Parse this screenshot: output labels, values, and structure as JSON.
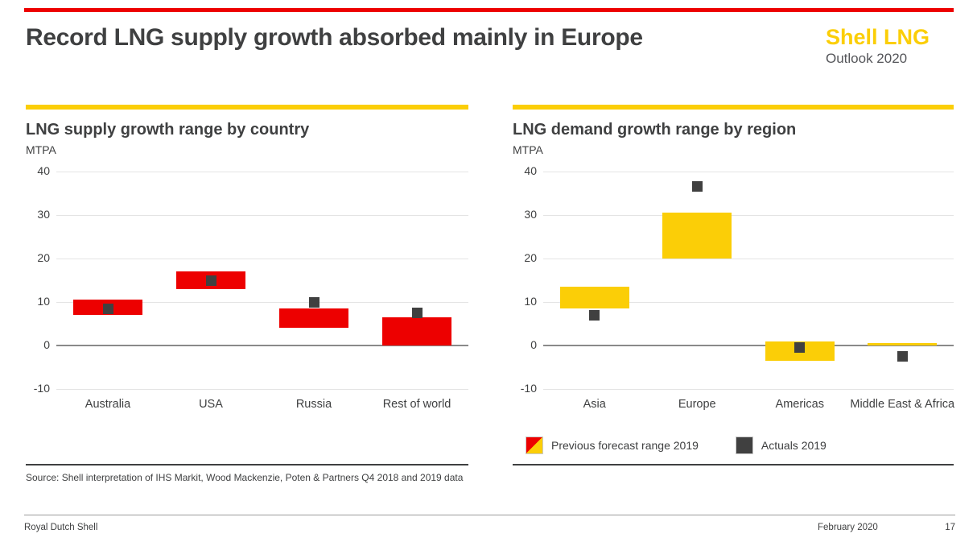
{
  "page": {
    "title": "Record LNG supply growth absorbed mainly in Europe",
    "brand": {
      "name": "Shell LNG",
      "subtitle": "Outlook 2020"
    },
    "source": "Source: Shell interpretation of IHS Markit, Wood Mackenzie, Poten & Partners Q4 2018 and 2019 data",
    "footer": {
      "left": "Royal Dutch Shell",
      "date": "February 2020",
      "page_number": "17"
    }
  },
  "legend": {
    "range_label": "Previous forecast range 2019",
    "actuals_label": "Actuals 2019"
  },
  "colors": {
    "shell_red": "#ED0000",
    "shell_yellow": "#FBCE07",
    "actuals_gray": "#404040",
    "grid_line": "#E4E4E4",
    "zero_line": "#8A8A8A",
    "text_dark": "#3F4041",
    "text_gray": "#55565A",
    "footer_line": "#9B9B9B"
  },
  "chart_data": [
    {
      "type": "bar",
      "title": "LNG supply growth range by country",
      "ylabel": "MTPA",
      "categories": [
        "Australia",
        "USA",
        "Russia",
        "Rest of world"
      ],
      "series": [
        {
          "name": "Previous forecast range 2019",
          "role": "range",
          "color": "#ED0000",
          "low": [
            7,
            13,
            4,
            0
          ],
          "high": [
            10.5,
            17,
            8.5,
            6.5
          ]
        },
        {
          "name": "Actuals 2019",
          "role": "point",
          "color": "#404040",
          "values": [
            8.5,
            15,
            10,
            7.5
          ]
        }
      ],
      "yticks": [
        40,
        30,
        20,
        10,
        0,
        -10
      ],
      "ylim": [
        -15,
        42
      ],
      "grid": true,
      "legend_position": "none"
    },
    {
      "type": "bar",
      "title": "LNG demand growth range by region",
      "ylabel": "MTPA",
      "categories": [
        "Asia",
        "Europe",
        "Americas",
        "Middle East & Africa"
      ],
      "series": [
        {
          "name": "Previous forecast range 2019",
          "role": "range",
          "color": "#FBCE07",
          "low": [
            8.5,
            20,
            -3.5,
            0
          ],
          "high": [
            13.5,
            30.5,
            1,
            0.5
          ]
        },
        {
          "name": "Actuals 2019",
          "role": "point",
          "color": "#404040",
          "values": [
            7,
            36.5,
            -0.5,
            -2.5
          ]
        }
      ],
      "yticks": [
        40,
        30,
        20,
        10,
        0,
        -10
      ],
      "ylim": [
        -15,
        42
      ],
      "grid": true,
      "legend_position": "bottom"
    }
  ]
}
